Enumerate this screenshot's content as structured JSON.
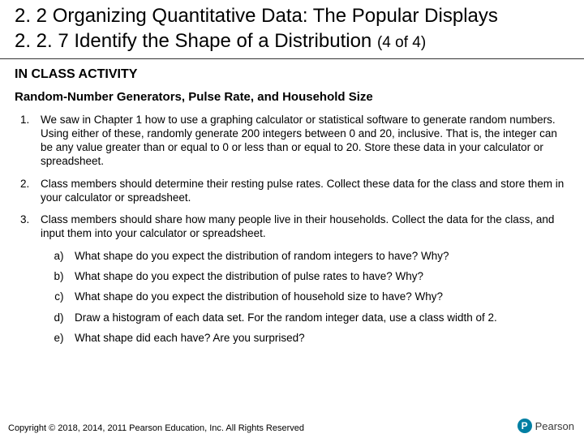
{
  "header": {
    "title": "2. 2 Organizing Quantitative Data: The Popular Displays",
    "subtitle_prefix": "2. 2. 7 Identify the Shape of a Distribution ",
    "subtitle_note": "(4 of 4)"
  },
  "section_label": "IN CLASS ACTIVITY",
  "activity_title": "Random-Number Generators, Pulse Rate, and Household Size",
  "items": [
    "We saw in Chapter 1 how to use a graphing calculator or statistical software to generate random numbers. Using either of these, randomly generate 200 integers between 0 and 20, inclusive. That is, the integer can be any value greater than or equal to 0 or less than or equal to 20. Store these data in your calculator or spreadsheet.",
    "Class members should determine their resting pulse rates. Collect these data for the class and store them in your calculator or spreadsheet.",
    "Class members should share how many people live in their households. Collect the data for the class, and input them into your calculator or spreadsheet."
  ],
  "sub_items": [
    "What shape do you expect the distribution of random integers to have? Why?",
    "What shape do you expect the distribution of pulse rates to have? Why?",
    "What shape do you expect the distribution of household size to have? Why?",
    "Draw a histogram of each data set. For the random integer data, use a class width of 2.",
    "What shape did each have? Are you surprised?"
  ],
  "footer": "Copyright © 2018, 2014, 2011 Pearson Education, Inc. All Rights Reserved",
  "logo": {
    "initial": "P",
    "text": "Pearson"
  },
  "colors": {
    "background": "#ffffff",
    "text": "#000000",
    "logo_bg": "#007fa3",
    "logo_text": "#3a3a3a"
  },
  "fonts": {
    "title_size": 24,
    "body_size": 13.5,
    "section_label_size": 16,
    "activity_title_size": 15,
    "footer_size": 11
  }
}
